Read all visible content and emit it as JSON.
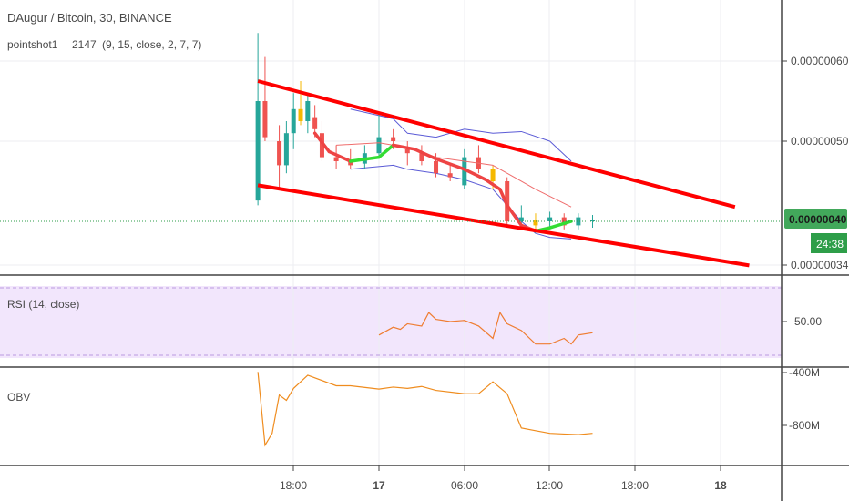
{
  "header": {
    "title": "DAugur / Bitcoin, 30, BINANCE",
    "indicator": "pointshot1",
    "indicator_value": "2147",
    "indicator_params": "(9, 15, close, 2, 7, 7)"
  },
  "price_axis": {
    "ticks": [
      "0.00000060",
      "0.00000050",
      "0.00000034"
    ],
    "last_price": "0.00000040",
    "countdown": "24:38"
  },
  "rsi": {
    "label": "RSI (14, close)",
    "tick": "50.00"
  },
  "obv": {
    "label": "OBV",
    "ticks": [
      "-400M",
      "-800M"
    ]
  },
  "time_axis": {
    "ticks": [
      "18:00",
      "17",
      "06:00",
      "12:00",
      "18:00",
      "18"
    ]
  },
  "colors": {
    "up": "#26a69a",
    "down": "#ef5350",
    "highlight": "#f5b800",
    "channel": "#ff0000",
    "band": "#5b5bd6",
    "ma": "#ef6c6c",
    "signal_up": "#33dd33",
    "signal_down": "#ee4444",
    "rsi_line": "#ef7d32",
    "obv_line": "#ef8c1e",
    "last_price_badge": "#2e9e49",
    "rsi_fill": "#f2e6fc"
  },
  "chart_data": [
    {
      "type": "candlestick",
      "title": "DAugur / Bitcoin, 30, BINANCE",
      "x": [
        "16 15:30",
        "16 16:00",
        "16 17:00",
        "16 17:30",
        "16 18:00",
        "16 18:30",
        "16 19:00",
        "16 19:30",
        "16 20:00",
        "16 21:00",
        "16 22:00",
        "16 23:00",
        "17 00:00",
        "17 01:00",
        "17 02:00",
        "17 03:00",
        "17 04:00",
        "17 05:00",
        "17 06:00",
        "17 07:00",
        "17 08:00",
        "17 09:00",
        "17 10:00",
        "17 11:00",
        "17 12:00",
        "17 13:00",
        "17 14:00",
        "17 15:00"
      ],
      "ohlc": [
        [
          4.26e-07,
          6.35e-07,
          4.2e-07,
          5.5e-07
        ],
        [
          5.5e-07,
          6.05e-07,
          5e-07,
          5.05e-07
        ],
        [
          5e-07,
          5.2e-07,
          4.4e-07,
          4.7e-07
        ],
        [
          4.7e-07,
          5.25e-07,
          4.6e-07,
          5.1e-07
        ],
        [
          5.1e-07,
          5.6e-07,
          4.9e-07,
          5.4e-07
        ],
        [
          5.4e-07,
          5.75e-07,
          5.2e-07,
          5.25e-07
        ],
        [
          5.25e-07,
          5.6e-07,
          5.1e-07,
          5.5e-07
        ],
        [
          5.3e-07,
          5.45e-07,
          5.05e-07,
          5.15e-07
        ],
        [
          5.1e-07,
          5.25e-07,
          4.75e-07,
          4.8e-07
        ],
        [
          4.8e-07,
          4.95e-07,
          4.65e-07,
          4.75e-07
        ],
        [
          4.75e-07,
          4.9e-07,
          4.65e-07,
          4.7e-07
        ],
        [
          4.72e-07,
          4.95e-07,
          4.65e-07,
          4.85e-07
        ],
        [
          4.85e-07,
          5.35e-07,
          4.8e-07,
          5.05e-07
        ],
        [
          5.05e-07,
          5.15e-07,
          4.9e-07,
          5e-07
        ],
        [
          4.9e-07,
          5e-07,
          4.7e-07,
          4.85e-07
        ],
        [
          4.85e-07,
          4.95e-07,
          4.7e-07,
          4.75e-07
        ],
        [
          4.75e-07,
          4.85e-07,
          4.55e-07,
          4.6e-07
        ],
        [
          4.6e-07,
          4.7e-07,
          4.5e-07,
          4.55e-07
        ],
        [
          4.45e-07,
          4.9e-07,
          4.4e-07,
          4.8e-07
        ],
        [
          4.8e-07,
          4.95e-07,
          4.6e-07,
          4.65e-07
        ],
        [
          4.65e-07,
          4.7e-07,
          4.4e-07,
          4.5e-07
        ],
        [
          4.5e-07,
          4.55e-07,
          3.95e-07,
          4e-07
        ],
        [
          4e-07,
          4.2e-07,
          3.9e-07,
          4.05e-07
        ],
        [
          3.95e-07,
          4.1e-07,
          3.88e-07,
          4.02e-07
        ],
        [
          4e-07,
          4.12e-07,
          3.92e-07,
          4.05e-07
        ],
        [
          4.05e-07,
          4.1e-07,
          3.9e-07,
          3.95e-07
        ],
        [
          3.95e-07,
          4.1e-07,
          3.9e-07,
          4.05e-07
        ],
        [
          4e-07,
          4.08e-07,
          3.92e-07,
          4.02e-07
        ]
      ],
      "highlight_indices": [
        5,
        20,
        23
      ],
      "upper_channel": [
        [
          "16 15:30",
          5.75e-07
        ],
        [
          "18 01:00",
          4.18e-07
        ]
      ],
      "lower_channel": [
        [
          "16 15:30",
          4.45e-07
        ],
        [
          "18 02:00",
          3.45e-07
        ]
      ],
      "upper_band": [
        [
          "16 22:00",
          5.4e-07
        ],
        [
          "17 01:00",
          5.28e-07
        ],
        [
          "17 02:00",
          5.1e-07
        ],
        [
          "17 04:00",
          5.05e-07
        ],
        [
          "17 06:00",
          5.15e-07
        ],
        [
          "17 08:00",
          5.1e-07
        ],
        [
          "17 10:00",
          5.12e-07
        ],
        [
          "17 12:00",
          5e-07
        ],
        [
          "17 13:30",
          4.75e-07
        ]
      ],
      "lower_band": [
        [
          "16 22:00",
          4.65e-07
        ],
        [
          "17 01:00",
          4.7e-07
        ],
        [
          "17 02:00",
          4.65e-07
        ],
        [
          "17 04:00",
          4.6e-07
        ],
        [
          "17 06:00",
          4.52e-07
        ],
        [
          "17 08:00",
          4.4e-07
        ],
        [
          "17 10:00",
          4e-07
        ],
        [
          "17 11:00",
          3.85e-07
        ],
        [
          "17 12:00",
          3.8e-07
        ],
        [
          "17 13:30",
          3.78e-07
        ]
      ],
      "ma": [
        [
          "16 21:00",
          4.95e-07
        ],
        [
          "17 00:00",
          4.98e-07
        ],
        [
          "17 02:00",
          4.92e-07
        ],
        [
          "17 04:00",
          4.8e-07
        ],
        [
          "17 06:00",
          4.75e-07
        ],
        [
          "17 08:00",
          4.7e-07
        ],
        [
          "17 09:30",
          4.55e-07
        ],
        [
          "17 11:00",
          4.4e-07
        ],
        [
          "17 13:30",
          4.18e-07
        ]
      ],
      "signal": [
        [
          "16 19:30",
          5.1e-07
        ],
        [
          "16 20:30",
          4.87e-07
        ],
        [
          "16 22:00",
          4.75e-07
        ],
        [
          "17 00:00",
          4.8e-07
        ],
        [
          "17 01:00",
          4.95e-07
        ],
        [
          "17 02:30",
          4.9e-07
        ],
        [
          "17 04:00",
          4.78e-07
        ],
        [
          "17 06:00",
          4.65e-07
        ],
        [
          "17 07:30",
          4.52e-07
        ],
        [
          "17 08:30",
          4.4e-07
        ],
        [
          "17 09:00",
          4.2e-07
        ],
        [
          "17 10:00",
          3.95e-07
        ],
        [
          "17 11:00",
          3.88e-07
        ],
        [
          "17 12:00",
          3.92e-07
        ],
        [
          "17 13:30",
          4e-07
        ]
      ],
      "ylim": [
        3.3e-07,
        6.6e-07
      ],
      "last_price": 4e-07
    },
    {
      "type": "line",
      "title": "RSI (14, close)",
      "x": [
        "17 00:00",
        "17 01:00",
        "17 01:30",
        "17 02:00",
        "17 03:00",
        "17 03:30",
        "17 04:00",
        "17 05:00",
        "17 06:00",
        "17 07:00",
        "17 08:00",
        "17 08:30",
        "17 09:00",
        "17 10:00",
        "17 11:00",
        "17 12:00",
        "17 13:00",
        "17 13:30",
        "17 14:00",
        "17 15:00"
      ],
      "values": [
        38,
        45,
        43,
        48,
        46,
        58,
        52,
        50,
        51,
        46,
        35,
        58,
        48,
        42,
        30,
        30,
        35,
        30,
        38,
        40
      ],
      "ylim": [
        20,
        80
      ]
    },
    {
      "type": "line",
      "title": "OBV",
      "x": [
        "16 15:30",
        "16 16:00",
        "16 16:30",
        "16 17:00",
        "16 17:30",
        "16 18:00",
        "16 19:00",
        "16 21:00",
        "16 22:00",
        "17 00:00",
        "17 01:00",
        "17 02:00",
        "17 03:00",
        "17 04:00",
        "17 06:00",
        "17 07:00",
        "17 08:00",
        "17 09:00",
        "17 10:00",
        "17 11:00",
        "17 12:00",
        "17 13:00",
        "17 14:00",
        "17 15:00"
      ],
      "values": [
        -395,
        -950,
        -860,
        -570,
        -610,
        -520,
        -420,
        -500,
        -500,
        -525,
        -510,
        -520,
        -505,
        -535,
        -560,
        -560,
        -470,
        -560,
        -820,
        -840,
        -860,
        -865,
        -870,
        -860
      ],
      "ylim": [
        -1000,
        -350
      ]
    }
  ]
}
